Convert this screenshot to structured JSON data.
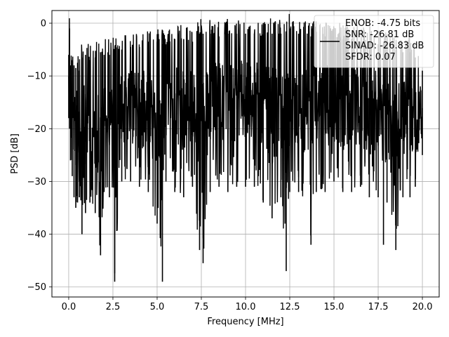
{
  "chart_data": {
    "type": "line",
    "xlabel": "Frequency [MHz]",
    "ylabel": "PSD [dB]",
    "xlim": [
      -0.95,
      20.95
    ],
    "ylim": [
      -51.9,
      2.4
    ],
    "x_ticks": [
      0.0,
      2.5,
      5.0,
      7.5,
      10.0,
      12.5,
      15.0,
      17.5,
      20.0
    ],
    "x_tick_labels": [
      "0.0",
      "2.5",
      "5.0",
      "7.5",
      "10.0",
      "12.5",
      "15.0",
      "17.5",
      "20.0"
    ],
    "y_ticks": [
      0,
      -10,
      -20,
      -30,
      -40,
      -50
    ],
    "y_tick_labels": [
      "0",
      "−10",
      "−20",
      "−30",
      "−40",
      "−50"
    ],
    "grid": true,
    "legend_position": "top-right",
    "legend_lines": [
      "ENOB: -4.75 bits",
      "SNR: -26.81 dB",
      "SINAD: -26.83 dB",
      "SFDR: 0.07"
    ],
    "line_color": "#000000",
    "series": [
      {
        "x": [
          0.0,
          0.05,
          0.1,
          0.2,
          0.3,
          0.4,
          0.5,
          0.6,
          0.75,
          0.95,
          1.2,
          1.5,
          1.8,
          2.0,
          2.3,
          2.6,
          3.0,
          3.5,
          4.0,
          4.5,
          5.0,
          5.3,
          5.5,
          6.0,
          6.5,
          7.0,
          7.4,
          7.6,
          8.0,
          8.5,
          9.0,
          9.5,
          10.0,
          10.5,
          11.0,
          11.5,
          12.0,
          12.3,
          12.5,
          13.0,
          13.7,
          14.0,
          14.5,
          15.0,
          15.5,
          16.0,
          16.5,
          17.0,
          17.5,
          17.8,
          18.0,
          18.5,
          18.9,
          19.3,
          19.6,
          20.0
        ],
        "y_upper": [
          -6.0,
          -1.0,
          -8.0,
          -7.0,
          -8.0,
          -8.5,
          -7.5,
          -9.0,
          -6.5,
          -6.0,
          -7.0,
          -6.5,
          -5.5,
          -6.0,
          -6.0,
          -5.0,
          -5.0,
          -4.5,
          -4.5,
          -3.5,
          -3.5,
          -4.0,
          -4.0,
          -3.0,
          -3.0,
          -3.5,
          -2.0,
          -2.0,
          -2.0,
          -2.5,
          -2.0,
          -2.0,
          -2.0,
          -2.0,
          -2.5,
          -2.0,
          -2.0,
          -2.5,
          -1.0,
          -2.0,
          -2.5,
          -2.0,
          -2.5,
          -2.5,
          -3.0,
          -3.0,
          -3.5,
          -3.5,
          -4.0,
          -4.0,
          -4.5,
          -5.0,
          -5.5,
          -5.5,
          -6.5,
          -9.0
        ],
        "y_lower": [
          -18.0,
          -20.0,
          -26.0,
          -29.0,
          -33.0,
          -35.0,
          -34.0,
          -33.0,
          -40.0,
          -36.0,
          -34.0,
          -36.0,
          -44.0,
          -32.0,
          -33.0,
          -49.0,
          -30.0,
          -30.0,
          -31.0,
          -32.0,
          -38.0,
          -49.0,
          -30.0,
          -32.0,
          -33.0,
          -31.0,
          -43.0,
          -45.5,
          -32.0,
          -31.0,
          -32.0,
          -31.0,
          -31.0,
          -31.0,
          -34.0,
          -37.0,
          -33.0,
          -47.0,
          -32.0,
          -32.0,
          -42.0,
          -32.0,
          -32.0,
          -30.0,
          -32.0,
          -32.0,
          -31.0,
          -33.0,
          -33.0,
          -42.0,
          -34.0,
          -43.0,
          -33.0,
          -33.0,
          -31.0,
          -25.0
        ]
      }
    ]
  }
}
